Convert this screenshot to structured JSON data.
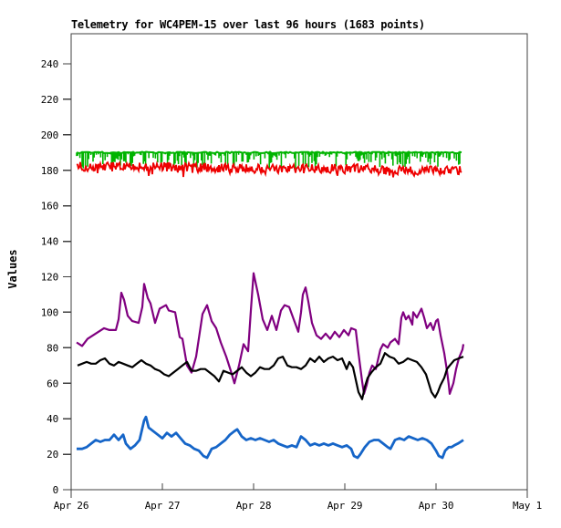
{
  "window": {
    "background": "#ffffff"
  },
  "chart_data": {
    "type": "line",
    "title": "Telemetry for WC4PEM-15 over last 96 hours (1683 points)",
    "ylabel": "Values",
    "xlabel": "",
    "grid": false,
    "legend_position": "none",
    "frame_color": "#404040",
    "x_axis": {
      "tick_labels": [
        "Apr 26",
        "Apr 27",
        "Apr 28",
        "Apr 29",
        "Apr 30",
        "May 1"
      ],
      "tick_positions_days": [
        0,
        1,
        2,
        3,
        4,
        5
      ]
    },
    "y_axis": {
      "min": 0,
      "max": 240,
      "step": 20,
      "ticks": [
        0,
        20,
        40,
        60,
        80,
        100,
        120,
        140,
        160,
        180,
        200,
        220,
        240
      ]
    },
    "noise_seed": 20250426,
    "series": [
      {
        "name": "green-band",
        "color": "#00b400",
        "type": "spike-band",
        "base": 190,
        "spike_min": 1,
        "spike_max": 9,
        "spike_probability": 0.6,
        "x_start": 0.06,
        "x_end": 4.28
      },
      {
        "name": "red-band",
        "color": "#ee0000",
        "type": "noise-line",
        "noise": 2.6,
        "dip_probability": 0.07,
        "base_points": [
          [
            0.06,
            182
          ],
          [
            1.0,
            182
          ],
          [
            1.9,
            181
          ],
          [
            2.6,
            181
          ],
          [
            3.1,
            181
          ],
          [
            3.5,
            180
          ],
          [
            4.28,
            180
          ]
        ],
        "x_start": 0.06,
        "x_end": 4.28
      },
      {
        "name": "purple-line",
        "color": "#800080",
        "type": "line",
        "stroke_width": 2.2,
        "points": [
          [
            0.06,
            83
          ],
          [
            0.12,
            81
          ],
          [
            0.18,
            85
          ],
          [
            0.24,
            87
          ],
          [
            0.3,
            89
          ],
          [
            0.36,
            91
          ],
          [
            0.42,
            90
          ],
          [
            0.49,
            90
          ],
          [
            0.52,
            96
          ],
          [
            0.55,
            111
          ],
          [
            0.58,
            107
          ],
          [
            0.62,
            98
          ],
          [
            0.67,
            95
          ],
          [
            0.74,
            94
          ],
          [
            0.78,
            103
          ],
          [
            0.8,
            116
          ],
          [
            0.84,
            108
          ],
          [
            0.87,
            105
          ],
          [
            0.92,
            94
          ],
          [
            0.97,
            102
          ],
          [
            1.04,
            104
          ],
          [
            1.07,
            101
          ],
          [
            1.14,
            100
          ],
          [
            1.19,
            86
          ],
          [
            1.22,
            85
          ],
          [
            1.27,
            70
          ],
          [
            1.32,
            66
          ],
          [
            1.37,
            75
          ],
          [
            1.44,
            99
          ],
          [
            1.49,
            104
          ],
          [
            1.54,
            95
          ],
          [
            1.59,
            91
          ],
          [
            1.64,
            83
          ],
          [
            1.7,
            75
          ],
          [
            1.75,
            67
          ],
          [
            1.79,
            60
          ],
          [
            1.84,
            70
          ],
          [
            1.89,
            82
          ],
          [
            1.94,
            78
          ],
          [
            1.97,
            101
          ],
          [
            2.0,
            122
          ],
          [
            2.05,
            110
          ],
          [
            2.1,
            96
          ],
          [
            2.15,
            90
          ],
          [
            2.2,
            98
          ],
          [
            2.25,
            90
          ],
          [
            2.3,
            101
          ],
          [
            2.34,
            104
          ],
          [
            2.39,
            103
          ],
          [
            2.44,
            96
          ],
          [
            2.49,
            89
          ],
          [
            2.52,
            100
          ],
          [
            2.54,
            110
          ],
          [
            2.57,
            114
          ],
          [
            2.6,
            106
          ],
          [
            2.64,
            94
          ],
          [
            2.69,
            87
          ],
          [
            2.74,
            85
          ],
          [
            2.79,
            88
          ],
          [
            2.84,
            85
          ],
          [
            2.89,
            89
          ],
          [
            2.94,
            86
          ],
          [
            2.99,
            90
          ],
          [
            3.04,
            87
          ],
          [
            3.07,
            91
          ],
          [
            3.12,
            90
          ],
          [
            3.15,
            77
          ],
          [
            3.19,
            61
          ],
          [
            3.21,
            54
          ],
          [
            3.24,
            59
          ],
          [
            3.27,
            66
          ],
          [
            3.3,
            70
          ],
          [
            3.34,
            68
          ],
          [
            3.39,
            79
          ],
          [
            3.42,
            82
          ],
          [
            3.47,
            80
          ],
          [
            3.5,
            83
          ],
          [
            3.55,
            85
          ],
          [
            3.59,
            82
          ],
          [
            3.62,
            97
          ],
          [
            3.64,
            100
          ],
          [
            3.67,
            96
          ],
          [
            3.7,
            98
          ],
          [
            3.74,
            93
          ],
          [
            3.75,
            100
          ],
          [
            3.79,
            97
          ],
          [
            3.82,
            100
          ],
          [
            3.84,
            102
          ],
          [
            3.87,
            97
          ],
          [
            3.9,
            91
          ],
          [
            3.94,
            94
          ],
          [
            3.97,
            90
          ],
          [
            4.0,
            95
          ],
          [
            4.02,
            96
          ],
          [
            4.05,
            87
          ],
          [
            4.09,
            77
          ],
          [
            4.12,
            67
          ],
          [
            4.14,
            59
          ],
          [
            4.15,
            54
          ],
          [
            4.19,
            60
          ],
          [
            4.22,
            68
          ],
          [
            4.25,
            74
          ],
          [
            4.29,
            79
          ],
          [
            4.3,
            82
          ]
        ]
      },
      {
        "name": "black-line",
        "color": "#000000",
        "type": "line",
        "stroke_width": 2.2,
        "points": [
          [
            0.07,
            70
          ],
          [
            0.17,
            72
          ],
          [
            0.22,
            71
          ],
          [
            0.27,
            71
          ],
          [
            0.32,
            73
          ],
          [
            0.37,
            74
          ],
          [
            0.42,
            71
          ],
          [
            0.47,
            70
          ],
          [
            0.52,
            72
          ],
          [
            0.57,
            71
          ],
          [
            0.62,
            70
          ],
          [
            0.67,
            69
          ],
          [
            0.72,
            71
          ],
          [
            0.77,
            73
          ],
          [
            0.82,
            71
          ],
          [
            0.87,
            70
          ],
          [
            0.92,
            68
          ],
          [
            0.97,
            67
          ],
          [
            1.02,
            65
          ],
          [
            1.07,
            64
          ],
          [
            1.12,
            66
          ],
          [
            1.17,
            68
          ],
          [
            1.22,
            70
          ],
          [
            1.27,
            72
          ],
          [
            1.32,
            67
          ],
          [
            1.37,
            67
          ],
          [
            1.42,
            68
          ],
          [
            1.47,
            68
          ],
          [
            1.52,
            66
          ],
          [
            1.57,
            64
          ],
          [
            1.62,
            61
          ],
          [
            1.67,
            67
          ],
          [
            1.72,
            66
          ],
          [
            1.77,
            65
          ],
          [
            1.82,
            67
          ],
          [
            1.87,
            69
          ],
          [
            1.92,
            66
          ],
          [
            1.97,
            64
          ],
          [
            2.02,
            66
          ],
          [
            2.07,
            69
          ],
          [
            2.12,
            68
          ],
          [
            2.17,
            68
          ],
          [
            2.22,
            70
          ],
          [
            2.27,
            74
          ],
          [
            2.32,
            75
          ],
          [
            2.37,
            70
          ],
          [
            2.42,
            69
          ],
          [
            2.47,
            69
          ],
          [
            2.52,
            68
          ],
          [
            2.57,
            70
          ],
          [
            2.62,
            74
          ],
          [
            2.67,
            72
          ],
          [
            2.72,
            75
          ],
          [
            2.77,
            72
          ],
          [
            2.82,
            74
          ],
          [
            2.87,
            75
          ],
          [
            2.92,
            73
          ],
          [
            2.97,
            74
          ],
          [
            3.02,
            68
          ],
          [
            3.05,
            72
          ],
          [
            3.09,
            69
          ],
          [
            3.12,
            62
          ],
          [
            3.15,
            55
          ],
          [
            3.19,
            51
          ],
          [
            3.22,
            58
          ],
          [
            3.25,
            63
          ],
          [
            3.29,
            66
          ],
          [
            3.34,
            69
          ],
          [
            3.39,
            71
          ],
          [
            3.44,
            77
          ],
          [
            3.49,
            75
          ],
          [
            3.54,
            74
          ],
          [
            3.59,
            71
          ],
          [
            3.64,
            72
          ],
          [
            3.69,
            74
          ],
          [
            3.74,
            73
          ],
          [
            3.79,
            72
          ],
          [
            3.84,
            69
          ],
          [
            3.89,
            65
          ],
          [
            3.92,
            60
          ],
          [
            3.95,
            55
          ],
          [
            3.99,
            52
          ],
          [
            4.02,
            55
          ],
          [
            4.05,
            59
          ],
          [
            4.09,
            63
          ],
          [
            4.12,
            68
          ],
          [
            4.15,
            70
          ],
          [
            4.2,
            73
          ],
          [
            4.25,
            74
          ],
          [
            4.3,
            75
          ]
        ]
      },
      {
        "name": "blue-line",
        "color": "#1565c8",
        "type": "line",
        "stroke_width": 2.8,
        "points": [
          [
            0.06,
            23
          ],
          [
            0.12,
            23
          ],
          [
            0.17,
            24
          ],
          [
            0.22,
            26
          ],
          [
            0.27,
            28
          ],
          [
            0.32,
            27
          ],
          [
            0.37,
            28
          ],
          [
            0.42,
            28
          ],
          [
            0.47,
            31
          ],
          [
            0.52,
            28
          ],
          [
            0.57,
            31
          ],
          [
            0.6,
            26
          ],
          [
            0.65,
            23
          ],
          [
            0.7,
            25
          ],
          [
            0.75,
            28
          ],
          [
            0.8,
            39
          ],
          [
            0.82,
            41
          ],
          [
            0.85,
            35
          ],
          [
            0.9,
            33
          ],
          [
            0.95,
            31
          ],
          [
            1.0,
            29
          ],
          [
            1.05,
            32
          ],
          [
            1.1,
            30
          ],
          [
            1.15,
            32
          ],
          [
            1.2,
            29
          ],
          [
            1.25,
            26
          ],
          [
            1.3,
            25
          ],
          [
            1.35,
            23
          ],
          [
            1.4,
            22
          ],
          [
            1.45,
            19
          ],
          [
            1.49,
            18
          ],
          [
            1.54,
            23
          ],
          [
            1.59,
            24
          ],
          [
            1.64,
            26
          ],
          [
            1.69,
            28
          ],
          [
            1.74,
            31
          ],
          [
            1.79,
            33
          ],
          [
            1.82,
            34
          ],
          [
            1.87,
            30
          ],
          [
            1.92,
            28
          ],
          [
            1.97,
            29
          ],
          [
            2.02,
            28
          ],
          [
            2.07,
            29
          ],
          [
            2.12,
            28
          ],
          [
            2.17,
            27
          ],
          [
            2.22,
            28
          ],
          [
            2.27,
            26
          ],
          [
            2.32,
            25
          ],
          [
            2.37,
            24
          ],
          [
            2.42,
            25
          ],
          [
            2.47,
            24
          ],
          [
            2.52,
            30
          ],
          [
            2.57,
            28
          ],
          [
            2.62,
            25
          ],
          [
            2.67,
            26
          ],
          [
            2.72,
            25
          ],
          [
            2.77,
            26
          ],
          [
            2.82,
            25
          ],
          [
            2.87,
            26
          ],
          [
            2.92,
            25
          ],
          [
            2.97,
            24
          ],
          [
            3.02,
            25
          ],
          [
            3.07,
            23
          ],
          [
            3.1,
            19
          ],
          [
            3.14,
            18
          ],
          [
            3.17,
            20
          ],
          [
            3.22,
            24
          ],
          [
            3.27,
            27
          ],
          [
            3.32,
            28
          ],
          [
            3.37,
            28
          ],
          [
            3.42,
            26
          ],
          [
            3.47,
            24
          ],
          [
            3.5,
            23
          ],
          [
            3.55,
            28
          ],
          [
            3.6,
            29
          ],
          [
            3.65,
            28
          ],
          [
            3.7,
            30
          ],
          [
            3.75,
            29
          ],
          [
            3.8,
            28
          ],
          [
            3.85,
            29
          ],
          [
            3.9,
            28
          ],
          [
            3.95,
            26
          ],
          [
            4.0,
            22
          ],
          [
            4.03,
            19
          ],
          [
            4.07,
            18
          ],
          [
            4.1,
            22
          ],
          [
            4.14,
            24
          ],
          [
            4.17,
            24
          ],
          [
            4.2,
            25
          ],
          [
            4.24,
            26
          ],
          [
            4.27,
            27
          ],
          [
            4.3,
            28
          ]
        ]
      }
    ]
  }
}
